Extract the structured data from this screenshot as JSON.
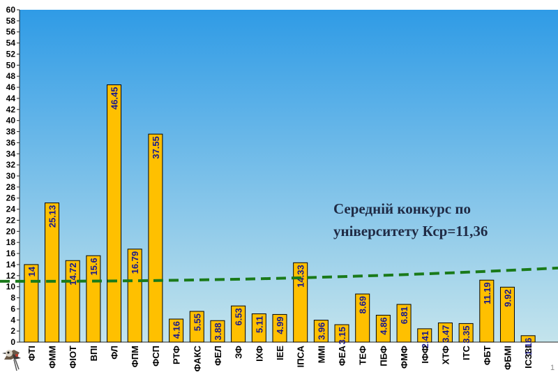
{
  "chart_data": {
    "type": "bar",
    "title": "",
    "xlabel": "",
    "ylabel": "",
    "ylim": [
      0,
      60
    ],
    "ytick_step": 2,
    "grid": false,
    "categories": [
      "ФТІ",
      "ФММ",
      "ФІОТ",
      "ВПІ",
      "ФЛ",
      "ФПМ",
      "ФСП",
      "РТФ",
      "ФАКС",
      "ФЕЛ",
      "ЗФ",
      "ІХФ",
      "ІЕЕ",
      "ІПСА",
      "ММІ",
      "ФЕА",
      "ТЕФ",
      "ПБФ",
      "ФМФ",
      "ІФФ",
      "ХТФ",
      "ІТС",
      "ФБТ",
      "ФБМІ",
      "ІСЗЗІ"
    ],
    "values": [
      14,
      25.13,
      14.72,
      15.6,
      46.45,
      16.79,
      37.55,
      4.16,
      5.55,
      3.88,
      6.53,
      5.11,
      4.99,
      14.33,
      3.96,
      3.15,
      8.69,
      4.86,
      6.81,
      2.41,
      3.47,
      3.35,
      11.19,
      9.92,
      1.16
    ],
    "value_labels": [
      "14",
      "25.13",
      "14.72",
      "15.6",
      "46.45",
      "16.79",
      "37.55",
      "4.16",
      "5.55",
      "3.88",
      "6.53",
      "5.11",
      "4.99",
      "14.33",
      "3.96",
      "3.15",
      "8.69",
      "4.86",
      "6.81",
      "2.41",
      "3.47",
      "3.35",
      "11.19",
      "9.92",
      "1.16"
    ],
    "average_line": {
      "label_line1": "Середній конкурс по",
      "label_line2": "університету Кср=11,36"
    },
    "colors": {
      "bar": "#FFC000",
      "bar_edge": "#000000",
      "avg_line": "#1a7a1a",
      "label": "#1a1a8c",
      "bg_top": "#2f9be6",
      "bg_bottom": "#c4e4ec"
    }
  },
  "page_number": "1"
}
